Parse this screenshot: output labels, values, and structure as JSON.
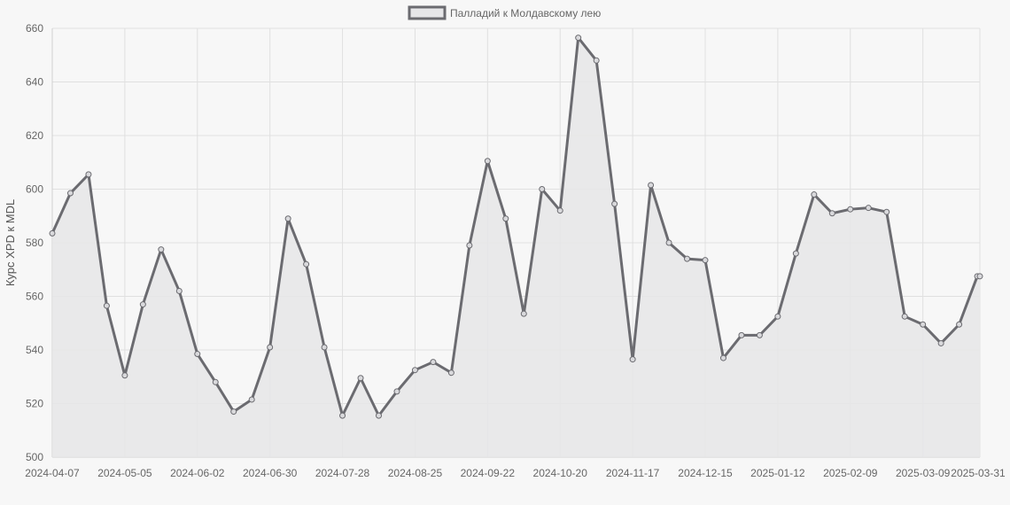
{
  "chart_data": {
    "type": "line",
    "title": "",
    "xlabel": "",
    "ylabel": "Курс XPD к MDL",
    "legend": {
      "position": "top-center",
      "label": "Палладий к Молдавскому лею"
    },
    "grid": true,
    "fill": true,
    "ylim": [
      500,
      660
    ],
    "y_ticks": [
      500,
      520,
      540,
      560,
      580,
      600,
      620,
      640,
      660
    ],
    "x_tick_labels": [
      "2024-04-07",
      "2024-05-05",
      "2024-06-02",
      "2024-06-30",
      "2024-07-28",
      "2024-08-25",
      "2024-09-22",
      "2024-10-20",
      "2024-11-17",
      "2024-12-15",
      "2025-01-12",
      "2025-02-09",
      "2025-03-09",
      "2025-03-31"
    ],
    "colors": {
      "line": "#6b6b70",
      "fill": "#e6e6e8",
      "grid": "#e0e0e0",
      "background": "#f7f7f7"
    },
    "series": [
      {
        "name": "Палладий к Молдавскому лею",
        "x": [
          "2024-04-07",
          "2024-04-14",
          "2024-04-21",
          "2024-04-28",
          "2024-05-05",
          "2024-05-12",
          "2024-05-19",
          "2024-05-26",
          "2024-06-02",
          "2024-06-09",
          "2024-06-16",
          "2024-06-23",
          "2024-06-30",
          "2024-07-07",
          "2024-07-14",
          "2024-07-21",
          "2024-07-28",
          "2024-08-04",
          "2024-08-11",
          "2024-08-18",
          "2024-08-25",
          "2024-09-01",
          "2024-09-08",
          "2024-09-15",
          "2024-09-22",
          "2024-09-29",
          "2024-10-06",
          "2024-10-13",
          "2024-10-20",
          "2024-10-27",
          "2024-11-03",
          "2024-11-10",
          "2024-11-17",
          "2024-11-24",
          "2024-12-01",
          "2024-12-08",
          "2024-12-15",
          "2024-12-22",
          "2024-12-29",
          "2025-01-05",
          "2025-01-12",
          "2025-01-19",
          "2025-01-26",
          "2025-02-02",
          "2025-02-09",
          "2025-02-16",
          "2025-02-23",
          "2025-03-02",
          "2025-03-09",
          "2025-03-16",
          "2025-03-23",
          "2025-03-30",
          "2025-03-31"
        ],
        "values": [
          583.5,
          598.5,
          605.5,
          556.5,
          530.5,
          557,
          577.5,
          562,
          538.5,
          528,
          517,
          521.5,
          541,
          589,
          572,
          541,
          515.5,
          529.5,
          515.5,
          524.5,
          532.5,
          535.5,
          531.5,
          579,
          610.5,
          589,
          553.5,
          600,
          592,
          656.5,
          648,
          594.5,
          536.5,
          601.5,
          580,
          574,
          573.5,
          537,
          545.5,
          545.5,
          552.5,
          576,
          598,
          591,
          592.5,
          593,
          591.5,
          552.5,
          549.5,
          542.5,
          549.5,
          567.5,
          567.5
        ]
      }
    ]
  }
}
